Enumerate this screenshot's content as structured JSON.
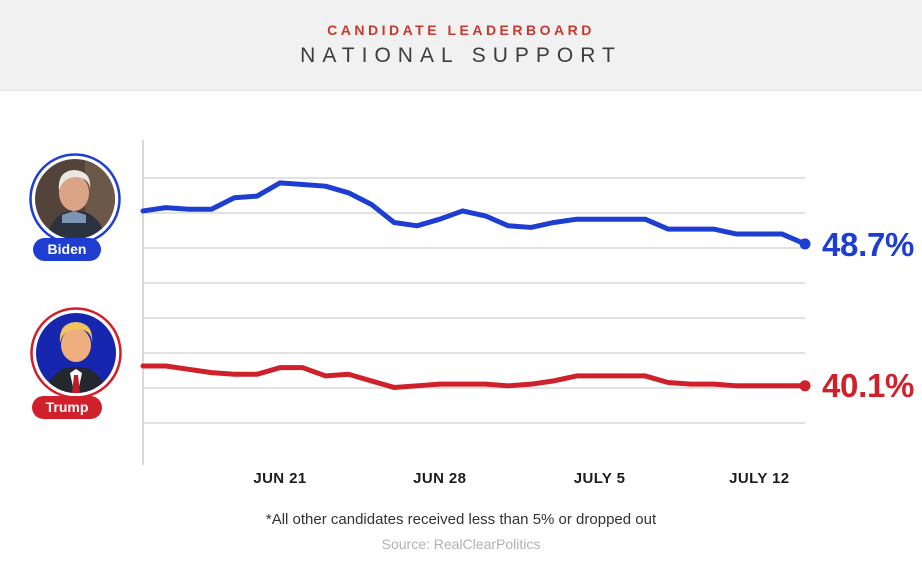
{
  "header": {
    "kicker": "CANDIDATE LEADERBOARD",
    "title": "NATIONAL SUPPORT",
    "accent_color": "#c43a2f",
    "background_color": "#f1f1f1"
  },
  "candidates": [
    {
      "name": "Biden",
      "color": "#1d3ed1",
      "value_label": "48.7%"
    },
    {
      "name": "Trump",
      "color": "#d0202a",
      "value_label": "40.1%"
    }
  ],
  "chart_data": {
    "type": "line",
    "x": [
      "Jun 15",
      "Jun 16",
      "Jun 17",
      "Jun 18",
      "Jun 19",
      "Jun 20",
      "Jun 21",
      "Jun 22",
      "Jun 23",
      "Jun 24",
      "Jun 25",
      "Jun 26",
      "Jun 27",
      "Jun 28",
      "Jun 29",
      "Jun 30",
      "Jul 1",
      "Jul 2",
      "Jul 3",
      "Jul 4",
      "Jul 5",
      "Jul 6",
      "Jul 7",
      "Jul 8",
      "Jul 9",
      "Jul 10",
      "Jul 11",
      "Jul 12",
      "Jul 13",
      "Jul 14"
    ],
    "series": [
      {
        "name": "Biden",
        "color": "#1d3ed1",
        "values": [
          50.7,
          50.9,
          50.8,
          50.8,
          51.5,
          51.6,
          52.4,
          52.3,
          52.2,
          51.8,
          51.1,
          50.0,
          49.8,
          50.2,
          50.7,
          50.4,
          49.8,
          49.7,
          50.0,
          50.2,
          50.2,
          50.2,
          50.2,
          49.6,
          49.6,
          49.6,
          49.3,
          49.3,
          49.3,
          48.7
        ]
      },
      {
        "name": "Trump",
        "color": "#d0202a",
        "values": [
          41.3,
          41.3,
          41.1,
          40.9,
          40.8,
          40.8,
          41.2,
          41.2,
          40.7,
          40.8,
          40.4,
          40.0,
          40.1,
          40.2,
          40.2,
          40.2,
          40.1,
          40.2,
          40.4,
          40.7,
          40.7,
          40.7,
          40.7,
          40.3,
          40.2,
          40.2,
          40.1,
          40.1,
          40.1,
          40.1
        ]
      }
    ],
    "xticks": [
      {
        "label": "JUN 21",
        "index": 6
      },
      {
        "label": "JUN 28",
        "index": 13
      },
      {
        "label": "JULY 5",
        "index": 20
      },
      {
        "label": "JULY 12",
        "index": 27
      }
    ],
    "ylim": [
      35.3,
      55.0
    ],
    "grid": "horizontal",
    "grid_color": "#e2e2e2",
    "axis_color": "#d9d9d9",
    "final_value_labels": [
      "48.7%",
      "40.1%"
    ],
    "title": "NATIONAL SUPPORT",
    "xlabel": "",
    "ylabel": ""
  },
  "footer": {
    "note": "*All other candidates received less than 5% or dropped out",
    "source": "Source: RealClearPolitics"
  }
}
